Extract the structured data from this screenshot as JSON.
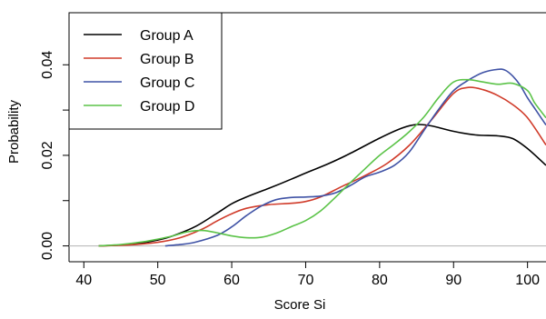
{
  "chart_data": {
    "type": "line",
    "xlabel": "Score Si",
    "ylabel": "Probability",
    "xlim": [
      38,
      102.5
    ],
    "ylim": [
      -0.0035,
      0.0515
    ],
    "x_ticks": [
      40,
      50,
      60,
      70,
      80,
      90,
      100
    ],
    "y_ticks": [
      0.0,
      0.02,
      0.04
    ],
    "x_tick_labels": [
      "40",
      "50",
      "60",
      "70",
      "80",
      "90",
      "100"
    ],
    "y_tick_labels": [
      "0.00",
      "0.02",
      "0.04"
    ],
    "minor_y_ticks": [
      0.01,
      0.03
    ],
    "baseline": 0.0,
    "legend": {
      "position": "top-left"
    },
    "series": [
      {
        "name": "Group A",
        "color": "#000000",
        "x": [
          42,
          45,
          48,
          50,
          52,
          55,
          58,
          60,
          62,
          65,
          68,
          70,
          73,
          76,
          80,
          83,
          85,
          87,
          90,
          93,
          96,
          98,
          100,
          102.5
        ],
        "y": [
          0.0,
          0.0002,
          0.0007,
          0.0013,
          0.0022,
          0.0042,
          0.0072,
          0.0093,
          0.0108,
          0.0127,
          0.0147,
          0.0161,
          0.0181,
          0.0204,
          0.0238,
          0.026,
          0.0268,
          0.0265,
          0.0253,
          0.0245,
          0.0243,
          0.0237,
          0.0215,
          0.0178
        ]
      },
      {
        "name": "Group B",
        "color": "#d03b2a",
        "x": [
          42,
          46,
          50,
          53,
          56,
          58,
          60,
          62,
          65,
          68,
          70,
          72,
          75,
          78,
          81,
          84,
          87,
          90,
          92,
          94,
          96,
          98,
          100,
          102.5
        ],
        "y": [
          0.0,
          0.0002,
          0.0008,
          0.0018,
          0.0037,
          0.0055,
          0.0071,
          0.0083,
          0.0091,
          0.0094,
          0.0098,
          0.0108,
          0.0132,
          0.0155,
          0.0182,
          0.0222,
          0.0278,
          0.0337,
          0.035,
          0.0345,
          0.0332,
          0.0312,
          0.0283,
          0.0223
        ]
      },
      {
        "name": "Group C",
        "color": "#3f52a5",
        "x": [
          51,
          53,
          55,
          58,
          60,
          62,
          64,
          66,
          68,
          70,
          72,
          74,
          76,
          78,
          80,
          82,
          84,
          86,
          88,
          90,
          92,
          94,
          96,
          97,
          98,
          99,
          100,
          101,
          102.5
        ],
        "y": [
          0.0,
          0.0003,
          0.0008,
          0.0023,
          0.0042,
          0.0067,
          0.0088,
          0.0102,
          0.0107,
          0.0108,
          0.011,
          0.0117,
          0.0133,
          0.0152,
          0.0163,
          0.0178,
          0.0207,
          0.0255,
          0.0302,
          0.0343,
          0.0366,
          0.0383,
          0.039,
          0.0388,
          0.0375,
          0.0355,
          0.0327,
          0.0303,
          0.0267
        ]
      },
      {
        "name": "Group D",
        "color": "#5bc348",
        "x": [
          42,
          45,
          48,
          50,
          52,
          54,
          56,
          58,
          60,
          62,
          64,
          66,
          68,
          70,
          72,
          74,
          76,
          78,
          80,
          82,
          84,
          86,
          88,
          90,
          92,
          94,
          96,
          98,
          100,
          101,
          102.5
        ],
        "y": [
          0.0,
          0.0003,
          0.0009,
          0.0015,
          0.0022,
          0.0031,
          0.0034,
          0.0029,
          0.0022,
          0.0018,
          0.0019,
          0.0028,
          0.0042,
          0.0056,
          0.0077,
          0.0107,
          0.0139,
          0.017,
          0.02,
          0.0225,
          0.0252,
          0.0285,
          0.0328,
          0.0362,
          0.0367,
          0.0362,
          0.0357,
          0.0359,
          0.0343,
          0.0315,
          0.0283
        ]
      }
    ]
  }
}
